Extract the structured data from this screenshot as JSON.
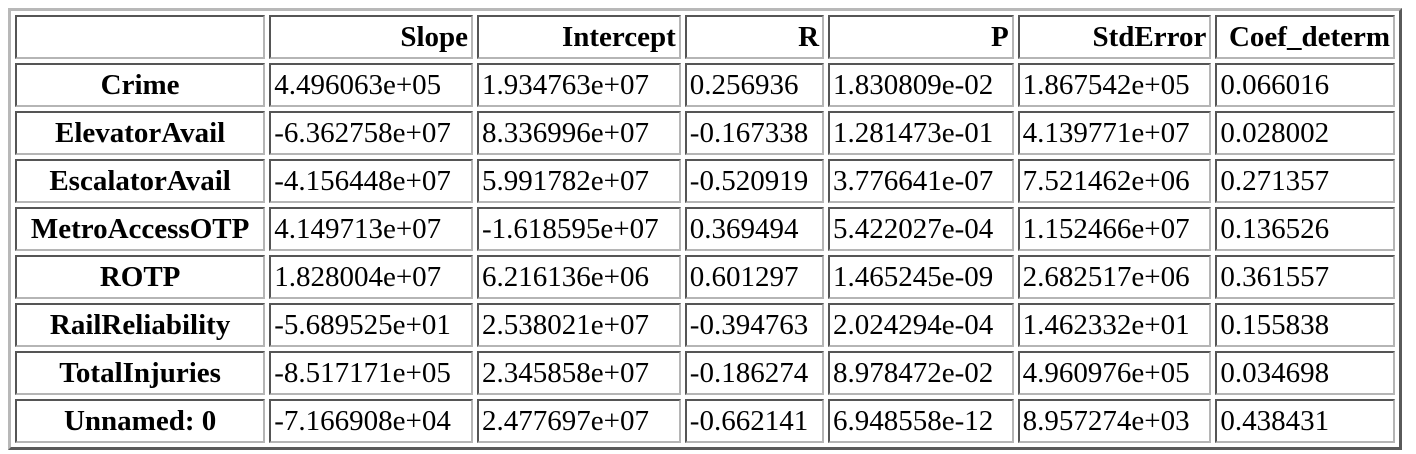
{
  "table": {
    "columns": [
      "",
      "Slope",
      "Intercept",
      "R",
      "P",
      "StdError",
      "Coef_determ"
    ],
    "rows": [
      {
        "label": "Crime",
        "cells": [
          "4.496063e+05",
          "1.934763e+07",
          "0.256936",
          "1.830809e-02",
          "1.867542e+05",
          "0.066016"
        ]
      },
      {
        "label": "ElevatorAvail",
        "cells": [
          "-6.362758e+07",
          "8.336996e+07",
          "-0.167338",
          "1.281473e-01",
          "4.139771e+07",
          "0.028002"
        ]
      },
      {
        "label": "EscalatorAvail",
        "cells": [
          "-4.156448e+07",
          "5.991782e+07",
          "-0.520919",
          "3.776641e-07",
          "7.521462e+06",
          "0.271357"
        ]
      },
      {
        "label": "MetroAccessOTP",
        "cells": [
          "4.149713e+07",
          "-1.618595e+07",
          "0.369494",
          "5.422027e-04",
          "1.152466e+07",
          "0.136526"
        ]
      },
      {
        "label": "ROTP",
        "cells": [
          "1.828004e+07",
          "6.216136e+06",
          "0.601297",
          "1.465245e-09",
          "2.682517e+06",
          "0.361557"
        ]
      },
      {
        "label": "RailReliability",
        "cells": [
          "-5.689525e+01",
          "2.538021e+07",
          "-0.394763",
          "2.024294e-04",
          "1.462332e+01",
          "0.155838"
        ]
      },
      {
        "label": "TotalInjuries",
        "cells": [
          "-8.517171e+05",
          "2.345858e+07",
          "-0.186274",
          "8.978472e-02",
          "4.960976e+05",
          "0.034698"
        ]
      },
      {
        "label": "Unnamed: 0",
        "cells": [
          "-7.166908e+04",
          "2.477697e+07",
          "-0.662141",
          "6.948558e-12",
          "8.957274e+03",
          "0.438431"
        ]
      }
    ]
  }
}
